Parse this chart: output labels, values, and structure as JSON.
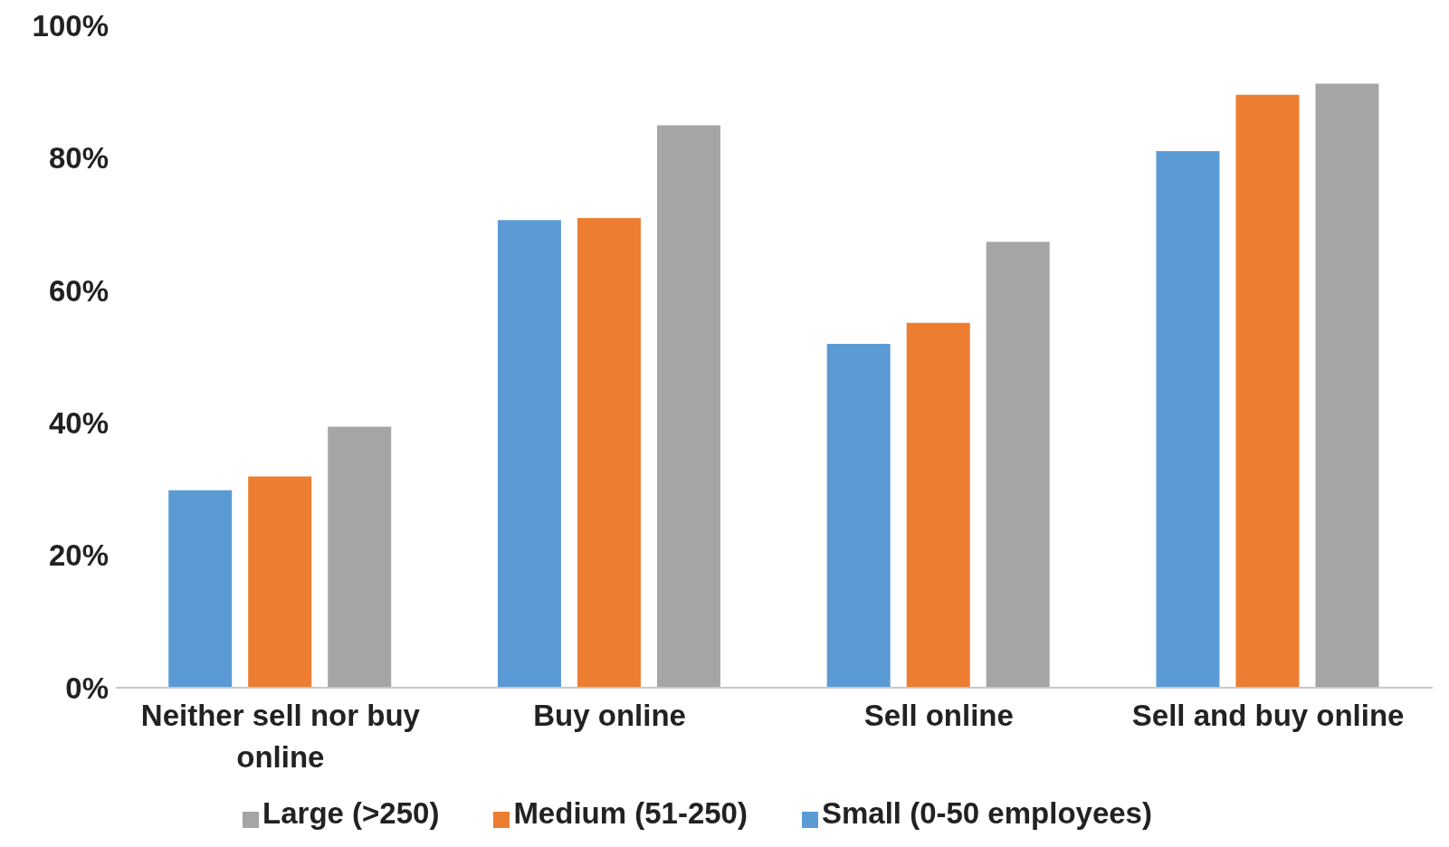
{
  "chart_data": {
    "type": "bar",
    "categories": [
      "Neither sell nor buy online",
      "Buy online",
      "Sell online",
      "Sell and buy online"
    ],
    "series": [
      {
        "name": "Small (0-50 employees)",
        "color": "#5b9bd5",
        "values": [
          29.8,
          70.6,
          51.9,
          81
        ]
      },
      {
        "name": "Medium (51-250)",
        "color": "#ed7d31",
        "values": [
          31.9,
          70.9,
          55.1,
          89.5
        ]
      },
      {
        "name": "Large (>250)",
        "color": "#a5a5a5",
        "values": [
          39.4,
          84.9,
          67.3,
          91.2
        ]
      }
    ],
    "ylim": [
      0,
      100
    ],
    "yticks": [
      {
        "value": 0,
        "label": "0%"
      },
      {
        "value": 20,
        "label": "20%"
      },
      {
        "value": 40,
        "label": "40%"
      },
      {
        "value": 60,
        "label": "60%"
      },
      {
        "value": 80,
        "label": "80%"
      },
      {
        "value": 100,
        "label": "100%"
      }
    ],
    "grid": false,
    "legend": "bottom"
  }
}
